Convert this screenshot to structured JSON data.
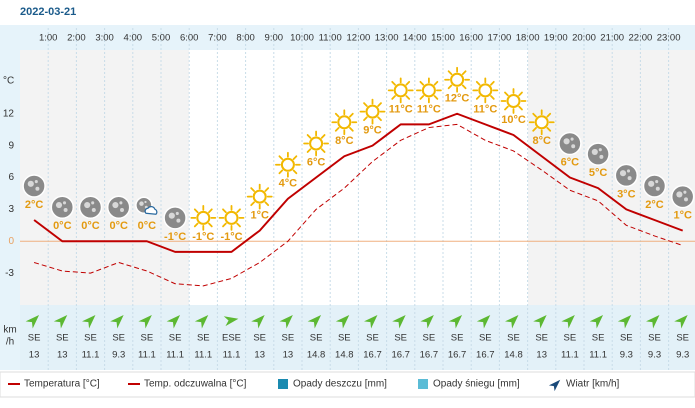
{
  "chart_data": {
    "type": "line",
    "title": "2022-03-21",
    "hour_labels": [
      "1:00",
      "2:00",
      "3:00",
      "4:00",
      "5:00",
      "6:00",
      "7:00",
      "8:00",
      "9:00",
      "10:00",
      "11:00",
      "12:00",
      "13:00",
      "14:00",
      "15:00",
      "16:00",
      "17:00",
      "18:00",
      "19:00",
      "20:00",
      "21:00",
      "22:00",
      "23:00"
    ],
    "y_label": "°C",
    "ylim": [
      -6,
      18
    ],
    "yticks": [
      12,
      9,
      6,
      3,
      0,
      -3
    ],
    "series": [
      {
        "name": "Temperatura [°C]",
        "color": "#c00000",
        "dashed": false,
        "values": [
          2,
          0,
          0,
          0,
          0,
          -1,
          -1,
          -1,
          1,
          4,
          6,
          8,
          9,
          11,
          11,
          12,
          11,
          10,
          8,
          6,
          5,
          3,
          2,
          1
        ],
        "value_labels": [
          "2°C",
          "0°C",
          "0°C",
          "0°C",
          "0°C",
          "-1°C",
          "-1°C",
          "-1°C",
          "1°C",
          "4°C",
          "6°C",
          "8°C",
          "9°C",
          "11°C",
          "11°C",
          "12°C",
          "11°C",
          "10°C",
          "8°C",
          "6°C",
          "5°C",
          "3°C",
          "2°C",
          "1°C"
        ]
      },
      {
        "name": "Temp. odczuwalna [°C]",
        "color": "#c00000",
        "dashed": true,
        "values": [
          -2,
          -2.8,
          -3,
          -2,
          -2.8,
          -4,
          -4.2,
          -3.5,
          -2,
          0,
          3,
          5,
          7.5,
          9.5,
          10.7,
          11,
          9.5,
          8.5,
          6.7,
          4.8,
          3.8,
          1.5,
          0.5,
          -0.4
        ]
      }
    ],
    "wind": {
      "label_top": "km",
      "label_bottom": "/h",
      "name": "Wiatr [km/h]",
      "directions": [
        "SE",
        "SE",
        "SE",
        "SE",
        "SE",
        "SE",
        "SE",
        "ESE",
        "SE",
        "SE",
        "SE",
        "SE",
        "SE",
        "SE",
        "SE",
        "SE",
        "SE",
        "SE",
        "SE",
        "SE",
        "SE",
        "SE",
        "SE",
        "SE"
      ],
      "speeds": [
        13,
        13,
        11.1,
        9.3,
        11.1,
        11.1,
        11.1,
        11.1,
        13,
        13,
        14.8,
        14.8,
        16.7,
        16.7,
        16.7,
        16.7,
        16.7,
        14.8,
        13,
        11.1,
        11.1,
        9.3,
        9.3,
        9.3
      ]
    },
    "rain_name": "Opady deszczu [mm]",
    "rain_color": "#1a8ab0",
    "snow_name": "Opady śniegu [mm]",
    "snow_color": "#5bbcd6"
  }
}
